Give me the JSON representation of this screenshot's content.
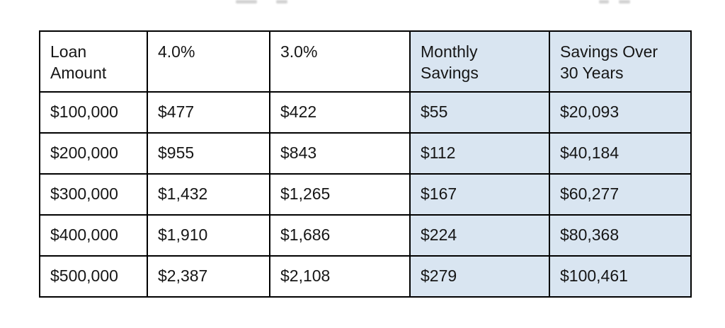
{
  "chart_data": {
    "type": "table",
    "columns": [
      {
        "label": "Loan\nAmount",
        "highlighted": false
      },
      {
        "label": "4.0%",
        "highlighted": false
      },
      {
        "label": "3.0%",
        "highlighted": false
      },
      {
        "label": "Monthly\nSavings",
        "highlighted": true
      },
      {
        "label": "Savings Over\n30 Years",
        "highlighted": true
      }
    ],
    "rows": [
      [
        "$100,000",
        "$477",
        "$422",
        "$55",
        "$20,093"
      ],
      [
        "$200,000",
        "$955",
        "$843",
        "$112",
        "$40,184"
      ],
      [
        "$300,000",
        "$1,432",
        "$1,265",
        "$167",
        "$60,277"
      ],
      [
        "$400,000",
        "$1,910",
        "$1,686",
        "$224",
        "$80,368"
      ],
      [
        "$500,000",
        "$2,387",
        "$2,108",
        "$279",
        "$100,461"
      ]
    ]
  },
  "colors": {
    "highlight_bg": "#d9e5f1",
    "border": "#000000",
    "text": "#161616",
    "page_bg": "#ffffff"
  }
}
